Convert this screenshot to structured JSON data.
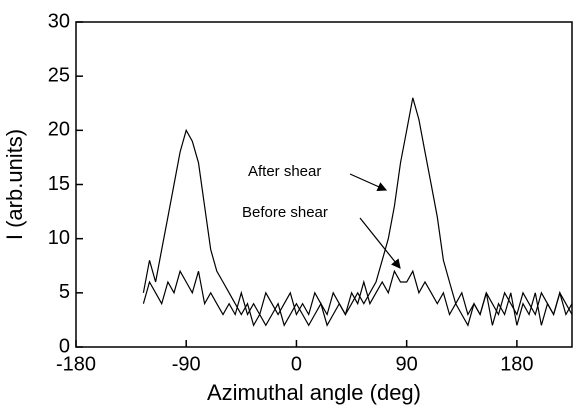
{
  "chart_data": {
    "type": "line",
    "x_label": "Azimuthal angle (deg)",
    "y_label": "I (arb.units)",
    "xlim": [
      -180,
      225
    ],
    "ylim": [
      0,
      30
    ],
    "xticks": [
      -180,
      -90,
      0,
      90,
      180
    ],
    "yticks": [
      0,
      5,
      10,
      15,
      20,
      25,
      30
    ],
    "grid": false,
    "annotations": [
      "After shear",
      "Before shear"
    ],
    "x": [
      -125,
      -120,
      -115,
      -110,
      -105,
      -100,
      -95,
      -90,
      -85,
      -80,
      -75,
      -70,
      -65,
      -60,
      -55,
      -50,
      -45,
      -40,
      -35,
      -30,
      -25,
      -20,
      -15,
      -10,
      -5,
      0,
      5,
      10,
      15,
      20,
      25,
      30,
      35,
      40,
      45,
      50,
      55,
      60,
      65,
      70,
      75,
      80,
      85,
      90,
      95,
      100,
      105,
      110,
      115,
      120,
      125,
      130,
      135,
      140,
      145,
      150,
      155,
      160,
      165,
      170,
      175,
      180,
      185,
      190,
      195,
      200,
      205,
      210,
      215,
      220,
      225
    ],
    "series": [
      {
        "name": "After shear",
        "color": "#000000",
        "values": [
          5,
          8,
          6,
          9,
          12,
          15,
          18,
          20,
          19,
          17,
          13,
          9,
          7,
          6,
          5,
          4,
          3,
          4,
          2,
          3,
          2,
          3,
          4,
          2,
          3,
          4,
          3,
          2,
          3,
          4,
          2,
          3,
          4,
          3,
          4,
          5,
          4,
          5,
          6,
          8,
          10,
          13,
          17,
          20,
          23,
          21,
          18,
          15,
          12,
          8,
          6,
          4,
          3,
          2,
          4,
          3,
          5,
          2,
          4,
          3,
          5,
          2,
          4,
          3,
          5,
          2,
          4,
          3,
          5,
          3,
          4
        ]
      },
      {
        "name": "Before shear",
        "color": "#000000",
        "values": [
          4,
          6,
          5,
          4,
          6,
          5,
          7,
          6,
          5,
          7,
          4,
          5,
          4,
          3,
          4,
          3,
          5,
          3,
          4,
          3,
          5,
          4,
          3,
          4,
          5,
          3,
          4,
          3,
          5,
          4,
          3,
          5,
          4,
          3,
          5,
          4,
          6,
          4,
          5,
          6,
          5,
          7,
          6,
          6,
          7,
          5,
          6,
          5,
          4,
          5,
          3,
          4,
          5,
          3,
          4,
          3,
          5,
          4,
          3,
          5,
          4,
          3,
          5,
          4,
          3,
          5,
          4,
          3,
          5,
          4,
          3
        ]
      }
    ]
  }
}
